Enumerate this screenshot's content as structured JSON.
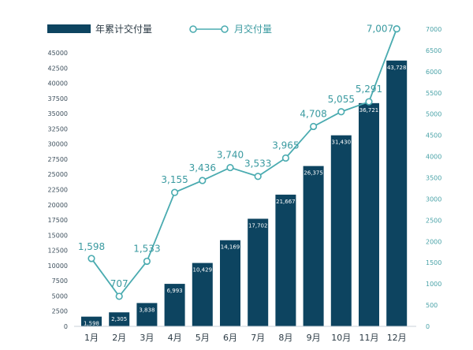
{
  "colors": {
    "bar": "#0d4460",
    "line": "#4aabb0",
    "left_axis_text": "#3d4f5c",
    "right_axis_text": "#4aa3a8"
  },
  "legend": {
    "bar_label": "年累计交付量",
    "line_label": "月交付量"
  },
  "chart_data": {
    "type": "bar+line",
    "categories": [
      "1月",
      "2月",
      "3月",
      "4月",
      "5月",
      "6月",
      "7月",
      "8月",
      "9月",
      "10月",
      "11月",
      "12月"
    ],
    "series": [
      {
        "name": "年累计交付量",
        "type": "bar",
        "axis": "left",
        "values": [
          1598,
          2305,
          3838,
          6993,
          10429,
          14169,
          17702,
          21667,
          26375,
          31430,
          36721,
          43728
        ],
        "labels": [
          "1,598",
          "2,305",
          "3,838",
          "6,993",
          "10,429",
          "14,169",
          "17,702",
          "21,667",
          "26,375",
          "31,430",
          "36,721",
          "43,728"
        ]
      },
      {
        "name": "月交付量",
        "type": "line",
        "axis": "right",
        "values": [
          1598,
          707,
          1533,
          3155,
          3436,
          3740,
          3533,
          3965,
          4708,
          5055,
          5291,
          7007
        ],
        "labels": [
          "1,598",
          "707",
          "1,533",
          "3,155",
          "3,436",
          "3,740",
          "3,533",
          "3,965",
          "4,708",
          "5,055",
          "5,291",
          "7,007"
        ]
      }
    ],
    "left_axis": {
      "min": 0,
      "max": 45000,
      "step": 2500,
      "ticks": [
        "0",
        "2500",
        "5000",
        "7500",
        "10000",
        "12500",
        "15000",
        "17500",
        "20000",
        "22500",
        "25000",
        "27500",
        "30000",
        "32500",
        "35000",
        "37500",
        "40000",
        "42500",
        "45000"
      ]
    },
    "right_axis": {
      "min": 0,
      "max": 7000,
      "step": 500,
      "ticks": [
        "0",
        "500",
        "1000",
        "1500",
        "2000",
        "2500",
        "3000",
        "3500",
        "4000",
        "4500",
        "5000",
        "5500",
        "6000",
        "6500",
        "7000"
      ]
    },
    "legend_position": "top-left",
    "grid": false
  }
}
